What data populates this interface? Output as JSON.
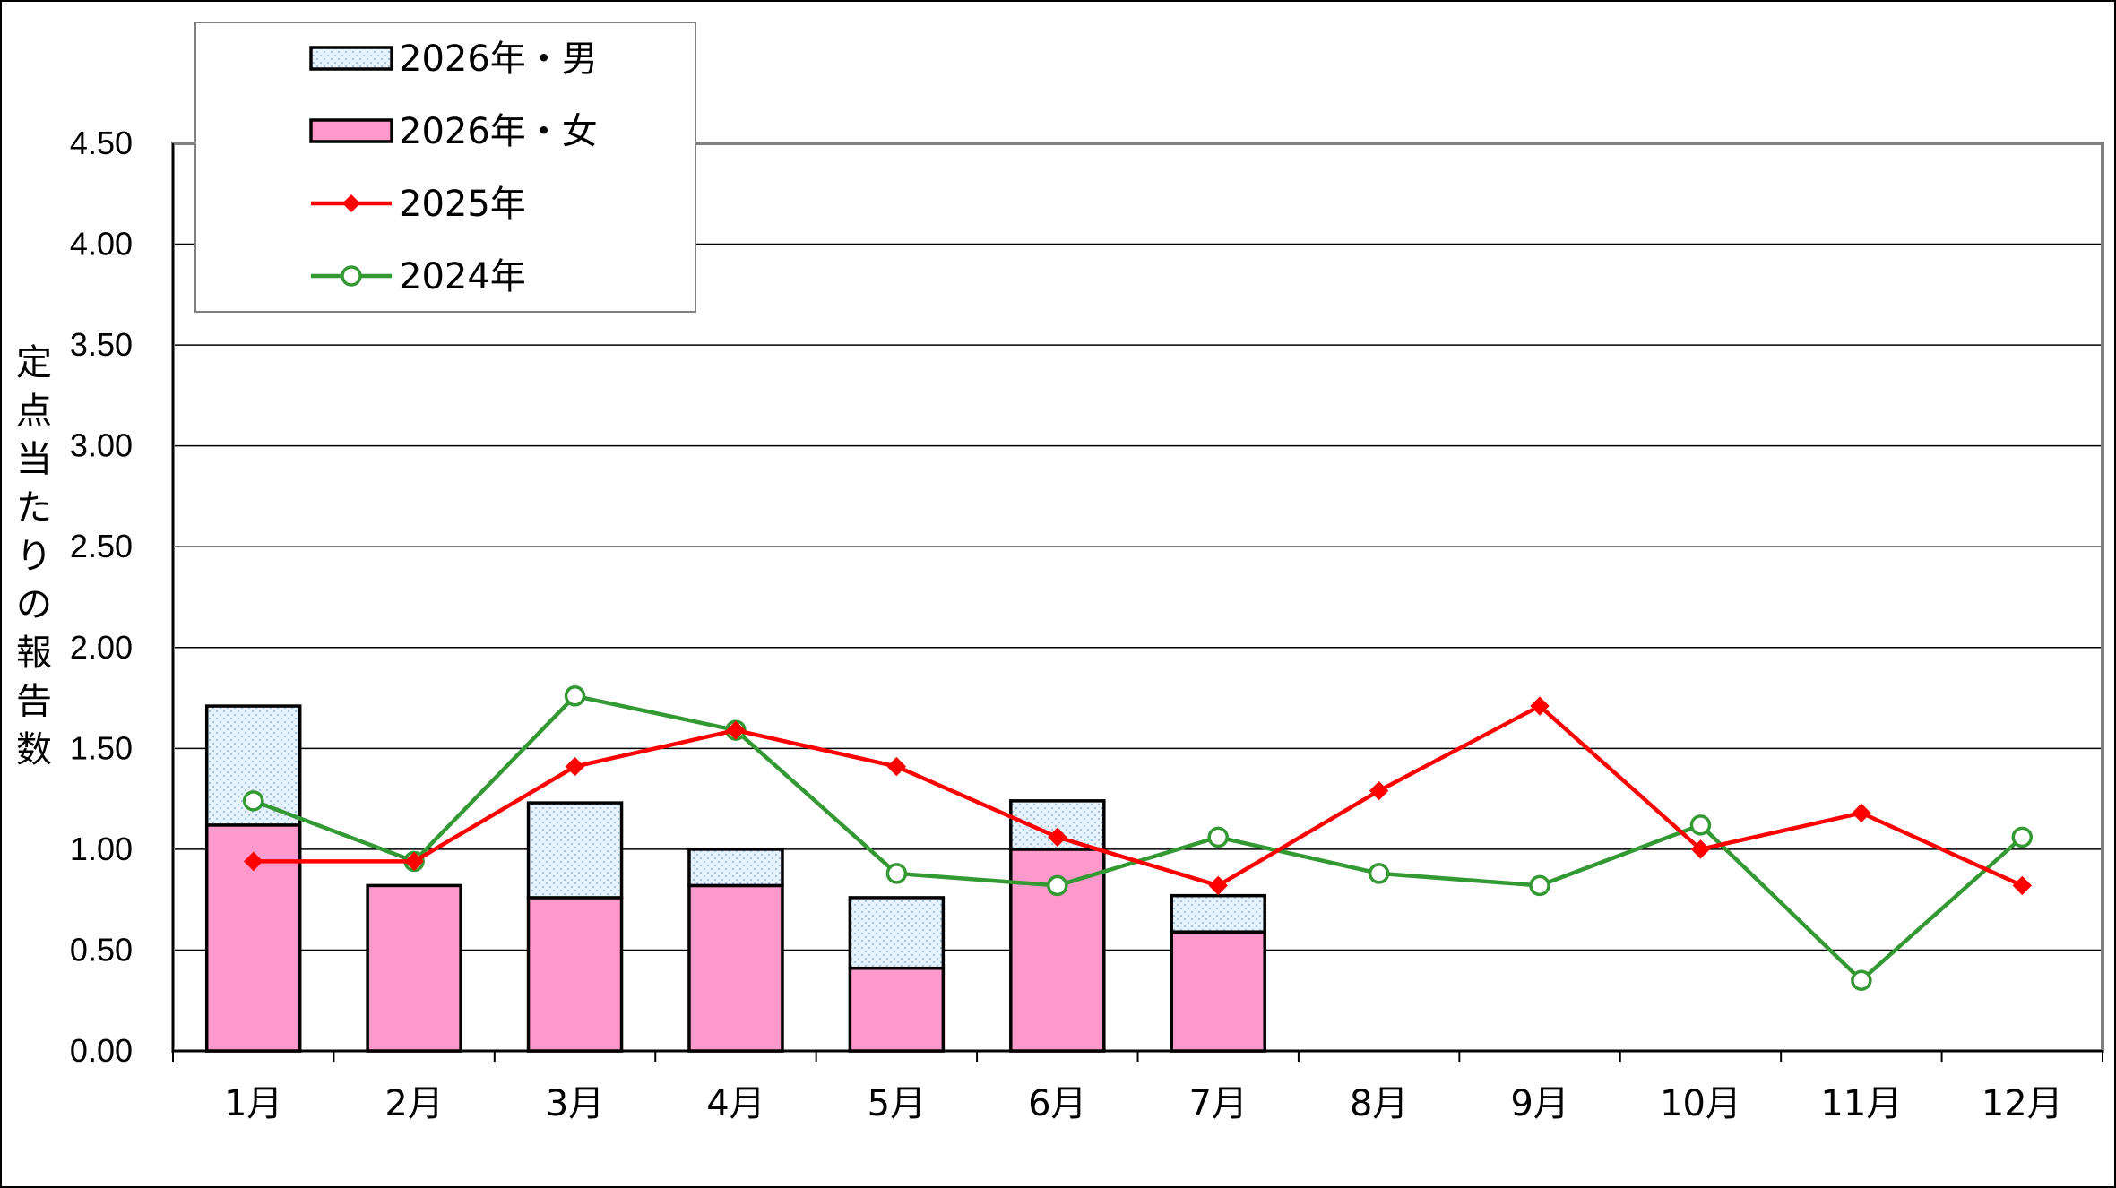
{
  "chart_data": {
    "type": "bar",
    "categories": [
      "1月",
      "2月",
      "3月",
      "4月",
      "5月",
      "6月",
      "7月",
      "8月",
      "9月",
      "10月",
      "11月",
      "12月"
    ],
    "ylabel": "定点当たりの報告数",
    "ylim": [
      0,
      4.5
    ],
    "yticks": [
      "0.00",
      "0.50",
      "1.00",
      "1.50",
      "2.00",
      "2.50",
      "3.00",
      "3.50",
      "4.00",
      "4.50"
    ],
    "grid": true,
    "legend_position": "top-left",
    "bar_series": [
      {
        "name": "2026年・女",
        "values": [
          1.12,
          0.82,
          0.76,
          0.82,
          0.41,
          1.0,
          0.59
        ],
        "color": "#ff99cc"
      },
      {
        "name": "2026年・男",
        "values": [
          0.59,
          0.0,
          0.47,
          0.18,
          0.35,
          0.24,
          0.18
        ],
        "color": "#dcebf7"
      }
    ],
    "line_series": [
      {
        "name": "2025年",
        "values": [
          0.94,
          0.94,
          1.41,
          1.59,
          1.41,
          1.06,
          0.82,
          1.29,
          1.71,
          1.0,
          1.18,
          0.82
        ],
        "color": "#ff0000",
        "marker": "diamond"
      },
      {
        "name": "2024年",
        "values": [
          1.24,
          0.94,
          1.76,
          1.59,
          0.88,
          0.82,
          1.06,
          0.88,
          0.82,
          1.12,
          0.35,
          1.06
        ],
        "color": "#339933",
        "marker": "circle"
      }
    ],
    "legend": [
      "2026年・男",
      "2026年・女",
      "2025年",
      "2024年"
    ]
  }
}
